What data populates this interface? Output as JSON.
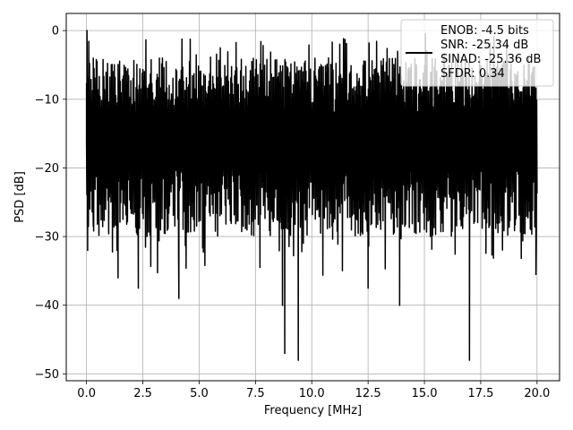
{
  "chart_data": {
    "type": "line",
    "title": "",
    "xlabel": "Frequency [MHz]",
    "ylabel": "PSD [dB]",
    "xlim": [
      -0.9,
      21.0
    ],
    "ylim": [
      -51.0,
      2.5
    ],
    "xticks": [
      0.0,
      2.5,
      5.0,
      7.5,
      10.0,
      12.5,
      15.0,
      17.5,
      20.0
    ],
    "xtick_labels": [
      "0.0",
      "2.5",
      "5.0",
      "7.5",
      "10.0",
      "12.5",
      "15.0",
      "17.5",
      "20.0"
    ],
    "yticks": [
      0,
      -10,
      -20,
      -30,
      -40,
      -50
    ],
    "ytick_labels": [
      "0",
      "−10",
      "−20",
      "−30",
      "−40",
      "−50"
    ],
    "grid": true,
    "legend_position": "top-right",
    "legend_entries": [
      "ENOB: -4.5 bits",
      "SNR: -25.34 dB",
      "SINAD: -25.36 dB",
      "SFDR: 0.34"
    ],
    "series": [
      {
        "color": "#000000",
        "x_range": [
          0.0,
          20.0
        ],
        "noise_band_dB": {
          "start": [
            0.0,
            -16.5
          ],
          "peak_level_range": [
            -12.0,
            -4.0
          ],
          "trough_level_range": [
            -30.0,
            -20.0
          ]
        },
        "x": [
          0.0,
          0.02,
          0.05,
          0.1,
          0.3,
          1.4,
          2.3,
          4.1,
          7.7,
          8.7,
          8.8,
          9.4,
          12.5,
          13.9,
          17.0,
          19.95
        ],
        "y": [
          -16.5,
          0.0,
          -32.0,
          -4.5,
          -28.5,
          -36.0,
          -37.5,
          -39.0,
          -34.5,
          -40.0,
          -47.0,
          -48.0,
          -37.5,
          -40.0,
          -48.0,
          -35.5
        ]
      }
    ]
  }
}
